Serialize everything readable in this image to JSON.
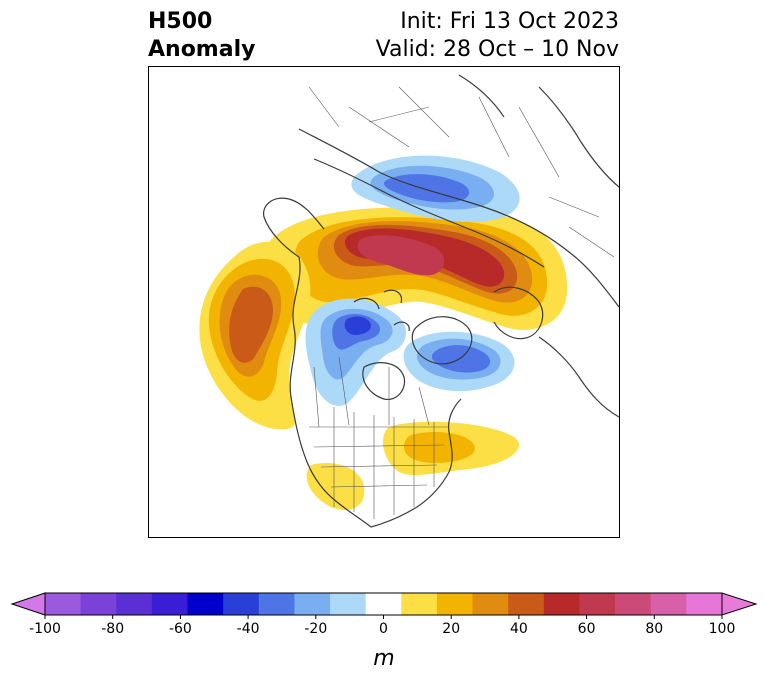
{
  "title": {
    "left_line1": "H500",
    "left_line2": "Anomaly",
    "right_line1": "Init: Fri 13 Oct 2023",
    "right_line2": "Valid: 28 Oct – 10 Nov"
  },
  "colorbar": {
    "unit": "m",
    "min": -100,
    "max": 100,
    "ticks": [
      "-100",
      "-80",
      "-60",
      "-40",
      "-20",
      "0",
      "20",
      "40",
      "60",
      "80",
      "100"
    ],
    "tick_values": [
      -100,
      -80,
      -60,
      -40,
      -20,
      0,
      20,
      40,
      60,
      80,
      100
    ],
    "levels": [
      -100,
      -90,
      -80,
      -70,
      -60,
      -50,
      -40,
      -30,
      -20,
      -10,
      10,
      20,
      30,
      40,
      50,
      60,
      70,
      80,
      90,
      100
    ],
    "colors": [
      "#9b59e0",
      "#7a42d8",
      "#5a2fd4",
      "#3a1ed6",
      "#0000cc",
      "#2a3fd8",
      "#4f74e6",
      "#79aef0",
      "#acd9f8",
      "#ffffff",
      "#fcde45",
      "#f2b400",
      "#e08c10",
      "#c95a18",
      "#b82a2a",
      "#c0394f",
      "#cc4a78",
      "#d760a8",
      "#e876d8"
    ],
    "under_color": "#d278e8",
    "over_color": "#e87ad8"
  },
  "map": {
    "coastline_color": "#3a3a3a",
    "border_color": "#555555"
  }
}
